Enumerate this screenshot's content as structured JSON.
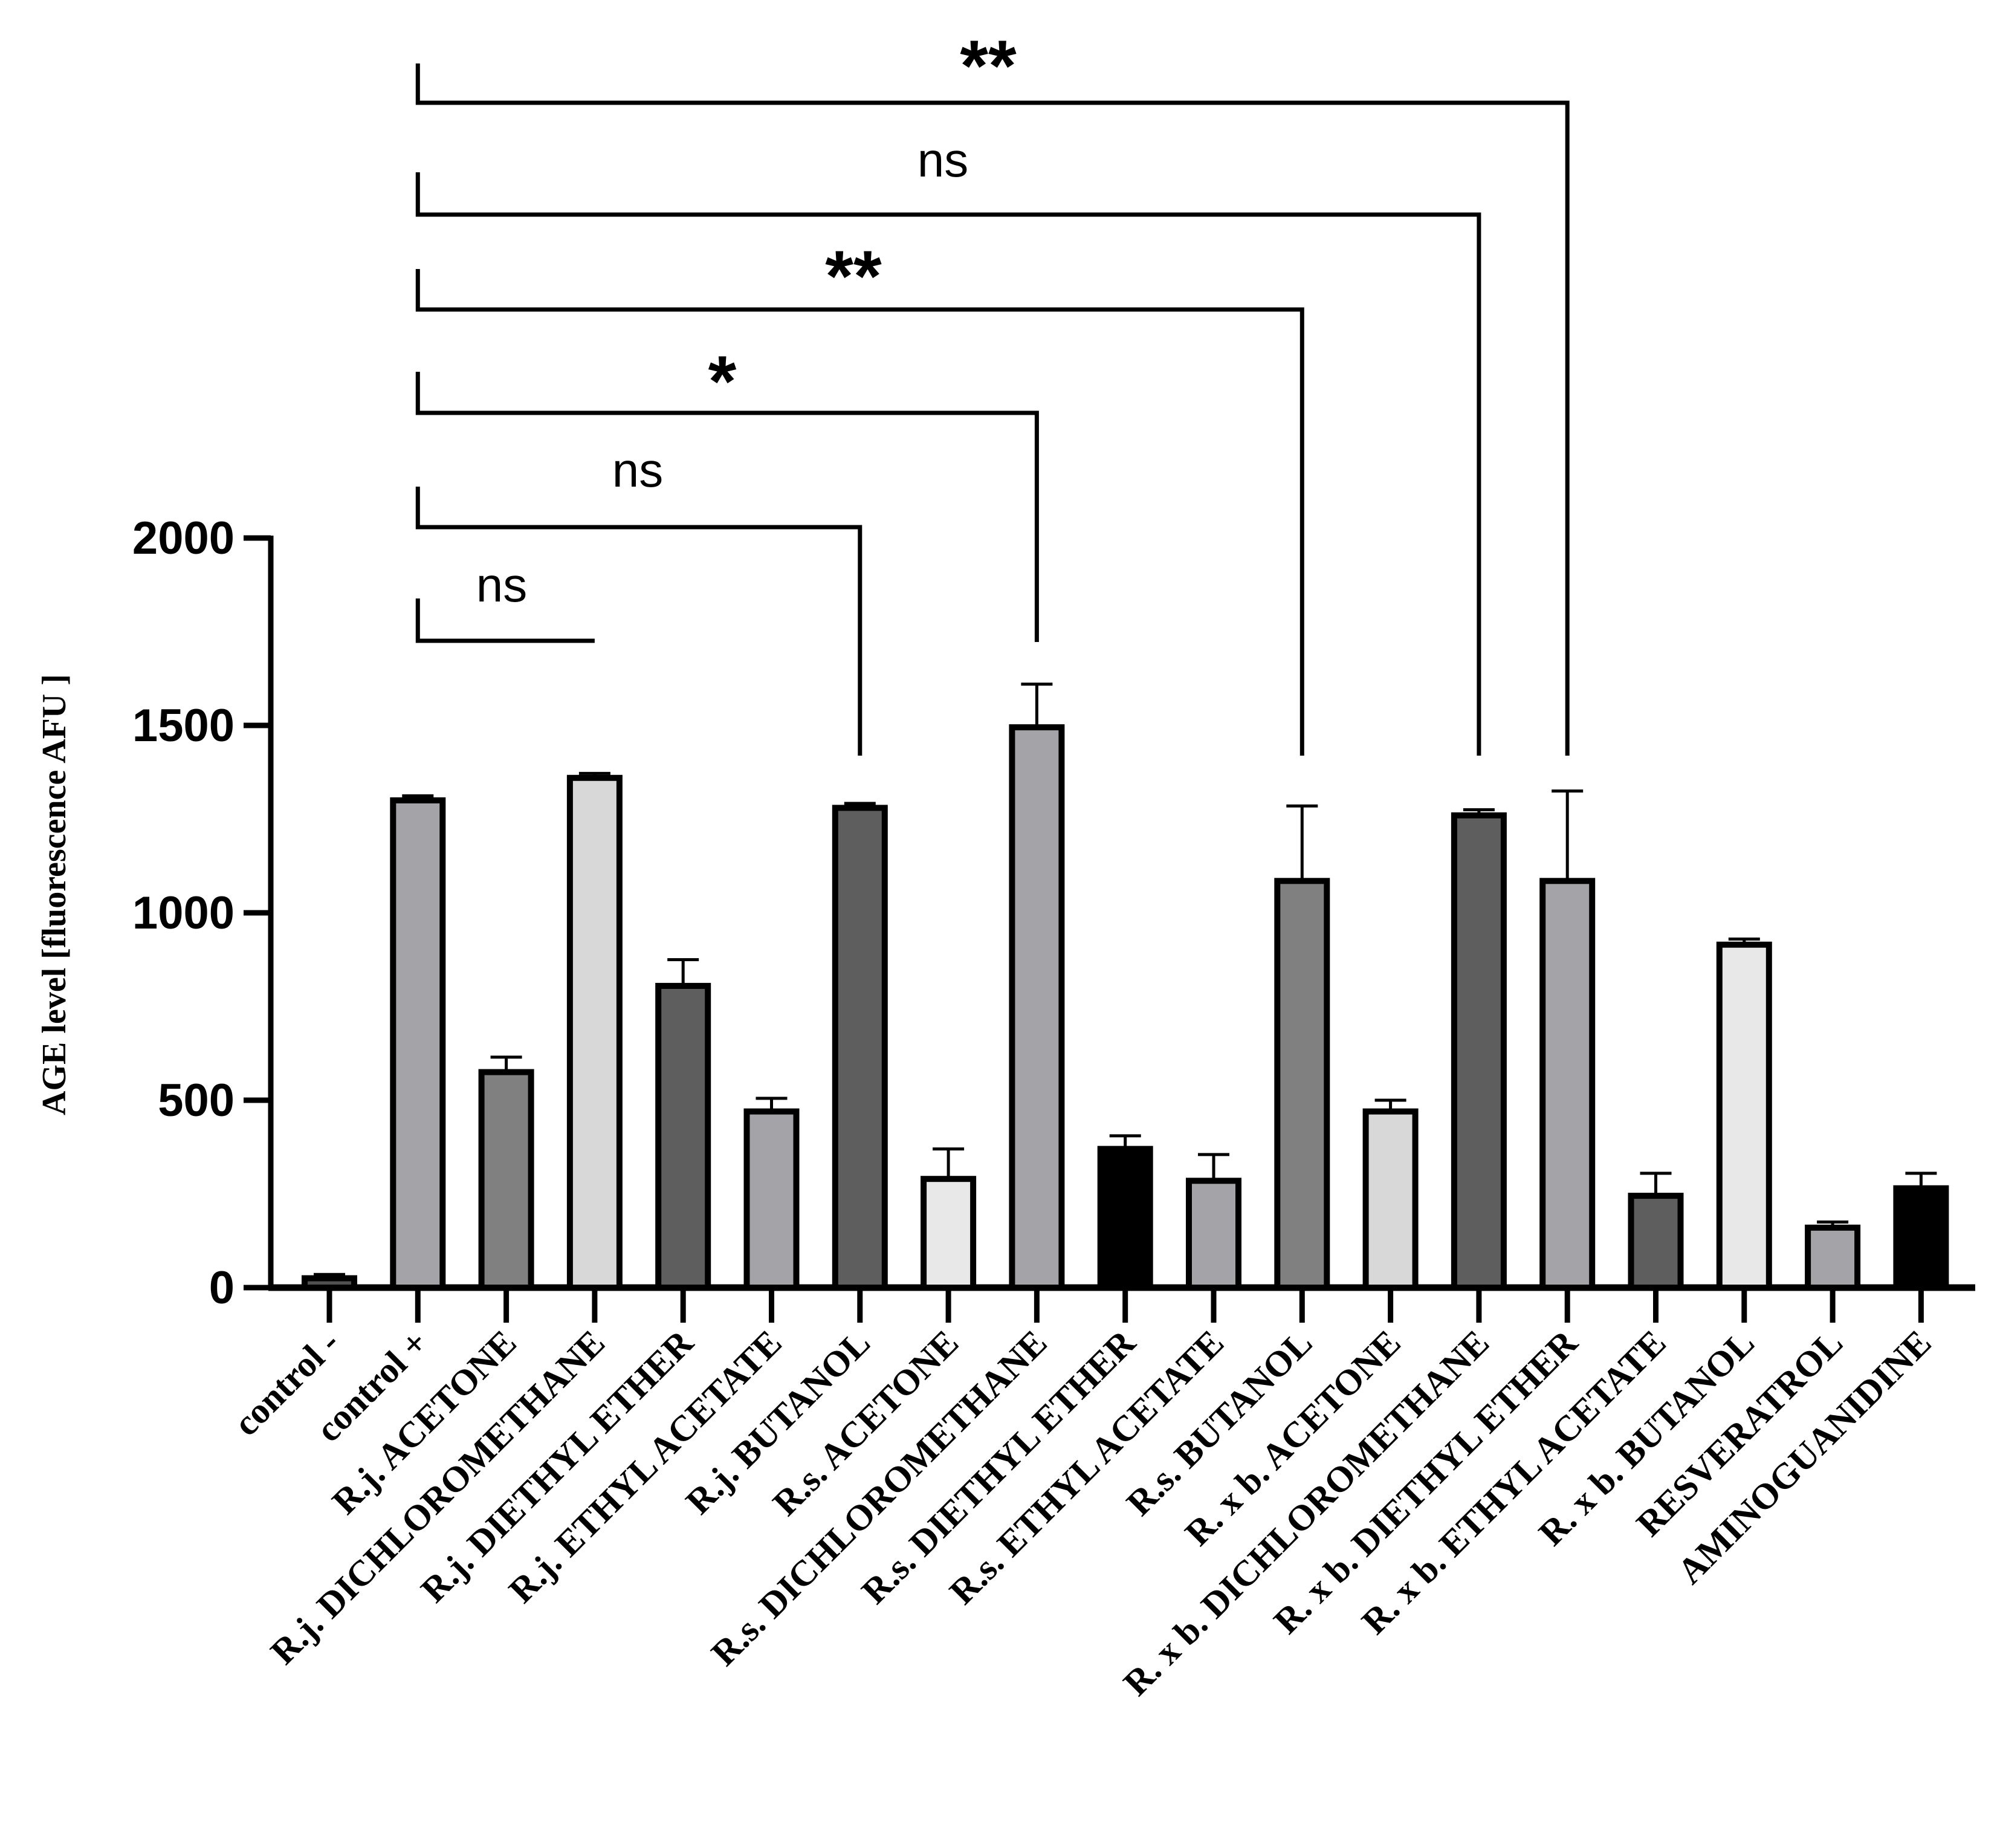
{
  "chart_data": {
    "type": "bar",
    "title": "",
    "xlabel": "",
    "ylabel": "AGE level [fluorescence AFU ]",
    "ylim": [
      0,
      2000
    ],
    "yticks": [
      "0",
      "500",
      "1000",
      "1500",
      "2000"
    ],
    "grid": false,
    "legend": "none",
    "categories": [
      "control -",
      "control +",
      "R.j. ACETONE",
      "R.j. DICHLOROMETHANE",
      "R.j. DIETHYL ETHER",
      "R.j. ETHYL ACETATE",
      "R.j. BUTANOL",
      "R.s. ACETONE",
      "R.s. DICHLOROMETHANE",
      "R.s. DIETHYL ETHER",
      "R.s. ETHYL ACETATE",
      "R.s. BUTANOL",
      "R. x b. ACETONE",
      "R. x b. DICHLOROMETHANE",
      "R. x b.  DIETHYL ETHER",
      "R. x b.  ETHYL ACETATE",
      "R. x b. BUTANOL",
      "RESVERATROL",
      "AMINOGUANIDINE"
    ],
    "values": [
      25,
      1300,
      575,
      1360,
      805,
      470,
      1280,
      290,
      1495,
      370,
      285,
      1085,
      470,
      1260,
      1085,
      245,
      915,
      160,
      265
    ],
    "errors": [
      10,
      12,
      40,
      12,
      70,
      35,
      12,
      80,
      115,
      35,
      70,
      200,
      30,
      15,
      240,
      60,
      15,
      15,
      40
    ],
    "bar_colors": [
      "#505050",
      "#a3a3a8",
      "#808080",
      "#d8d8d8",
      "#5e5e5e",
      "#a3a3a8",
      "#5e5e5e",
      "#e8e8e8",
      "#a3a3a8",
      "#000000",
      "#a3a3a8",
      "#808080",
      "#d8d8d8",
      "#5e5e5e",
      "#a3a3a8",
      "#5e5e5e",
      "#e8e8e8",
      "#a3a3a8",
      "#000000"
    ],
    "comparisons": [
      {
        "from": 1,
        "to": 3,
        "label": "ns"
      },
      {
        "from": 1,
        "to": 6,
        "label": "ns"
      },
      {
        "from": 1,
        "to": 8,
        "label": "*"
      },
      {
        "from": 1,
        "to": 11,
        "label": "**"
      },
      {
        "from": 1,
        "to": 13,
        "label": "ns"
      },
      {
        "from": 1,
        "to": 14,
        "label": "**"
      }
    ]
  }
}
